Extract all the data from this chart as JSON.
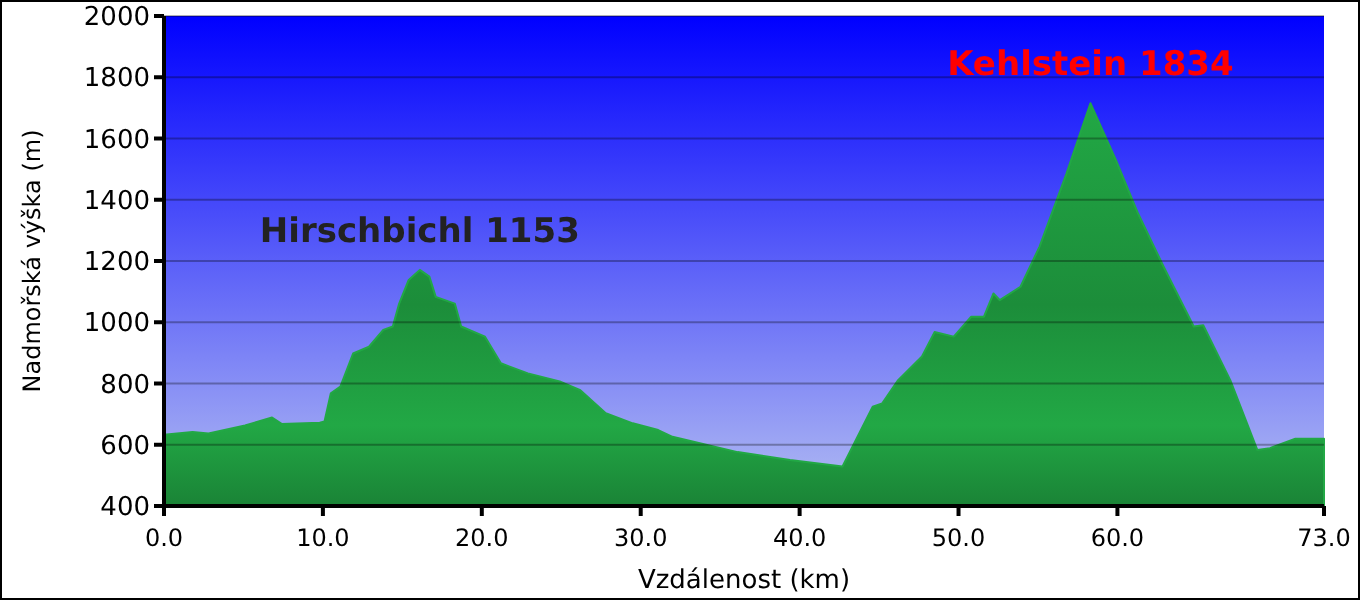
{
  "chart_data": {
    "type": "area",
    "xlabel": "Vzdálenost  (km)",
    "ylabel": "Nadmořská výška (m)",
    "x": [
      0,
      1.8,
      2.8,
      5.1,
      6.8,
      7.4,
      9.8,
      10.1,
      10.5,
      11.1,
      11.9,
      12.9,
      13.8,
      14.4,
      14.8,
      15.4,
      16.1,
      16.7,
      17.1,
      18.3,
      18.7,
      20.2,
      21.2,
      22.9,
      24.9,
      26.2,
      27.8,
      29.5,
      31.1,
      32.0,
      36.1,
      39.4,
      42.7,
      44.6,
      45.2,
      46.2,
      47.7,
      48.5,
      49.7,
      50.8,
      51.6,
      52.2,
      52.6,
      53.9,
      55.1,
      56.8,
      58.3,
      59.9,
      61.3,
      62.9,
      64.8,
      65.4,
      67.1,
      68.8,
      69.6,
      71.2,
      73
    ],
    "series": [
      {
        "color": "#22a845",
        "values": [
          633,
          642,
          637,
          663,
          689,
          668,
          672,
          676,
          768,
          790,
          898,
          920,
          975,
          986,
          1061,
          1138,
          1171,
          1149,
          1083,
          1061,
          986,
          953,
          866,
          833,
          807,
          778,
          703,
          670,
          648,
          626,
          576,
          550,
          529,
          724,
          735,
          811,
          888,
          968,
          953,
          1018,
          1018,
          1094,
          1072,
          1116,
          1247,
          1486,
          1715,
          1530,
          1355,
          1182,
          986,
          990,
          811,
          583,
          589,
          620,
          620
        ]
      }
    ],
    "xlim": [
      0,
      73
    ],
    "xticks": [
      {
        "value": 0,
        "label": "0.0"
      },
      {
        "value": 10,
        "label": "10.0"
      },
      {
        "value": 20,
        "label": "20.0"
      },
      {
        "value": 30,
        "label": "30.0"
      },
      {
        "value": 40,
        "label": "40.0"
      },
      {
        "value": 50,
        "label": "50.0"
      },
      {
        "value": 60,
        "label": "60.0"
      },
      {
        "value": 73,
        "label": "73.0"
      }
    ],
    "ylim": [
      400,
      2000
    ],
    "yticks": [
      400,
      600,
      800,
      1000,
      1200,
      1400,
      1600,
      1800,
      2000
    ],
    "grid": "y",
    "annotations": [
      {
        "text": "Hirschbichl 1153",
        "x": 16.1,
        "y": 1171
      },
      {
        "text": "Kehlstein 1834",
        "x": 58.3,
        "y": 1715
      }
    ]
  }
}
